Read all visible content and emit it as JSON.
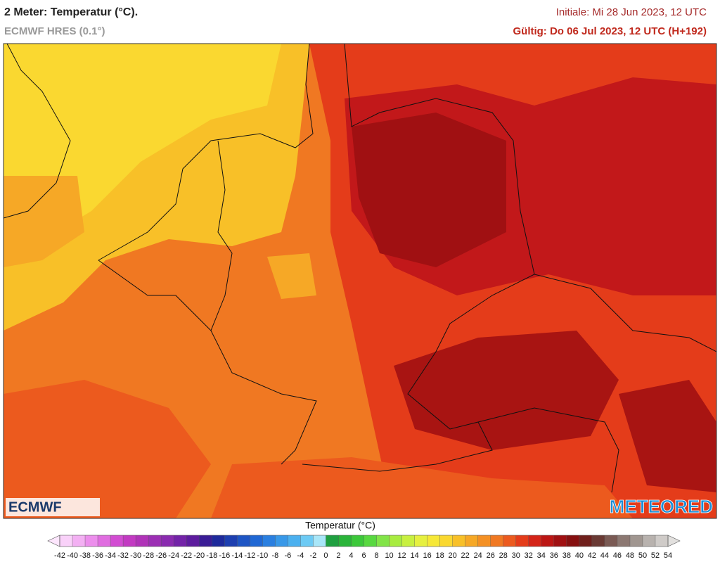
{
  "header": {
    "title": "2 Meter: Temperatur (°C).",
    "model": "ECMWF HRES (0.1°)",
    "init": "Initiale: Mi 28 Jun 2023, 12 UTC",
    "valid": "Gültig: Do 06 Jul 2023, 12 UTC (H+192)"
  },
  "map": {
    "logo_left": "ECMWF",
    "logo_right": "METEORED"
  },
  "colorbar": {
    "title": "Temperatur (°C)",
    "ticks": [
      -42,
      -40,
      -38,
      -36,
      -34,
      -32,
      -30,
      -28,
      -26,
      -24,
      -22,
      -20,
      -18,
      -16,
      -14,
      -12,
      -10,
      -8,
      -6,
      -4,
      -2,
      0,
      2,
      4,
      6,
      8,
      10,
      12,
      14,
      16,
      18,
      20,
      22,
      24,
      26,
      28,
      30,
      32,
      34,
      36,
      38,
      40,
      42,
      44,
      46,
      48,
      50,
      52,
      54
    ],
    "colors": [
      "#f9d1f9",
      "#f3b0f3",
      "#ec8eec",
      "#e06de0",
      "#d24cd2",
      "#c23ac2",
      "#b033b8",
      "#9c2fb4",
      "#8a2bb0",
      "#7323a8",
      "#5d1c9e",
      "#3a1c96",
      "#1e2a9c",
      "#1d3fb0",
      "#1e55c4",
      "#2068d4",
      "#2a7fe0",
      "#3898e8",
      "#4bb0ef",
      "#6ccaf4",
      "#a8e6f8",
      "#1fa040",
      "#2ab43a",
      "#3cc83a",
      "#58d840",
      "#82e448",
      "#a8ec40",
      "#c8f040",
      "#e6f040",
      "#f6e838",
      "#fad830",
      "#f8c028",
      "#f6a826",
      "#f49024",
      "#f07822",
      "#ec5a1e",
      "#e43c1a",
      "#d42418",
      "#bc1614",
      "#a01012",
      "#861010",
      "#70201c",
      "#6a3a34",
      "#7a5a54",
      "#8c7872",
      "#a09690",
      "#b8b2ae",
      "#cfcbc8"
    ],
    "under_color": "#fde6fd",
    "over_color": "#e2e0de"
  }
}
